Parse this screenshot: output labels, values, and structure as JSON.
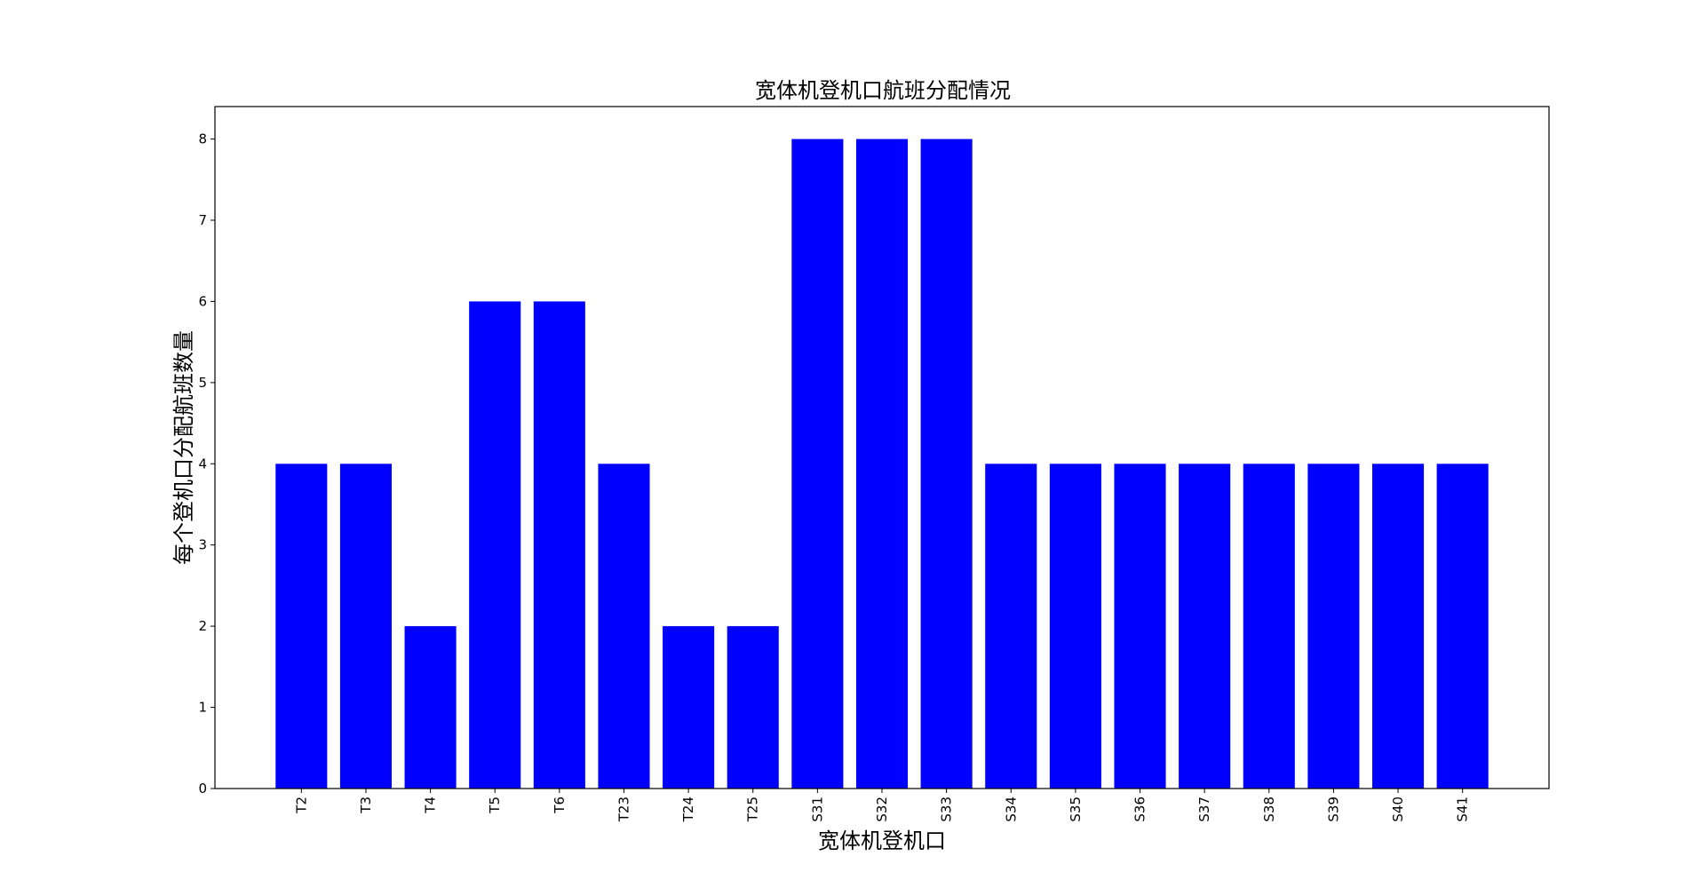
{
  "chart_data": {
    "type": "bar",
    "title": "宽体机登机口航班分配情况",
    "xlabel": "宽体机登机口",
    "ylabel": "每个登机口分配航班数量",
    "categories": [
      "T2",
      "T3",
      "T4",
      "T5",
      "T6",
      "T23",
      "T24",
      "T25",
      "S31",
      "S32",
      "S33",
      "S34",
      "S35",
      "S36",
      "S37",
      "S38",
      "S39",
      "S40",
      "S41"
    ],
    "values": [
      4,
      4,
      2,
      6,
      6,
      4,
      2,
      2,
      8,
      8,
      8,
      4,
      4,
      4,
      4,
      4,
      4,
      4,
      4
    ],
    "ylim": [
      0,
      8.4
    ],
    "yticks": [
      0,
      1,
      2,
      3,
      4,
      5,
      6,
      7,
      8
    ],
    "xtick_rotation": "vertical",
    "bar_color": "#0000ff",
    "grid": false,
    "legend": "none"
  }
}
